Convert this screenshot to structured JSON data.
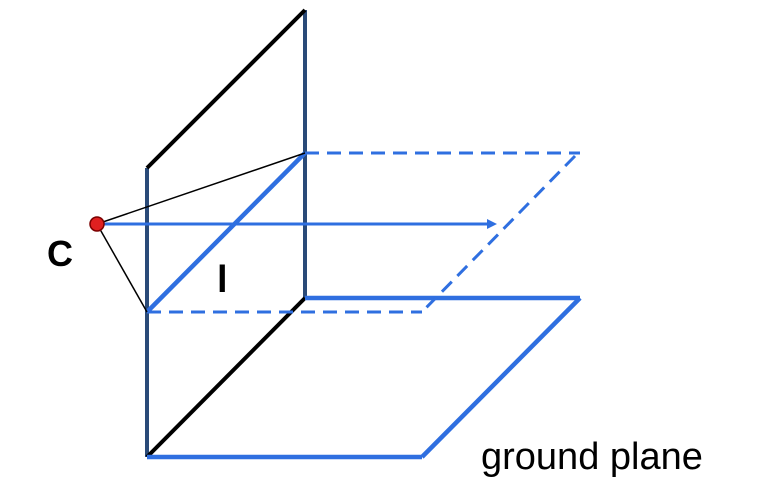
{
  "diagram": {
    "labels": {
      "camera_center": "C",
      "horizon_line": "l",
      "ground_plane": "ground plane"
    },
    "colors": {
      "blue": "#2f6fe0",
      "dark_navy": "#2a4a78",
      "black": "#000000",
      "camera_fill": "#e02020",
      "camera_stroke": "#7a0000"
    }
  }
}
